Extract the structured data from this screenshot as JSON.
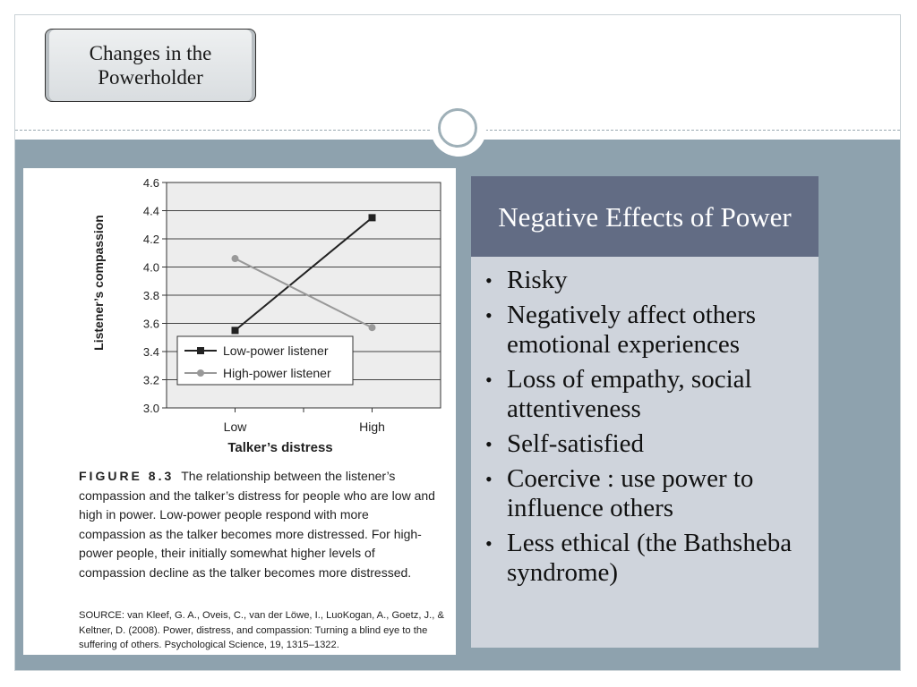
{
  "slide": {
    "section_title": "Changes in the Powerholder",
    "panel_title": "Negative Effects of Power",
    "bullets": [
      "Risky",
      "Negatively affect others emotional experiences",
      "Loss of empathy, social attentiveness",
      "Self-satisfied",
      "Coercive : use power to influence others",
      "Less ethical (the Bathsheba syndrome)"
    ],
    "colors": {
      "band": "#8ea2ae",
      "panel_header": "#626c84",
      "panel_body": "#cfd4dc"
    }
  },
  "figure": {
    "label": "FIGURE 8.3",
    "caption": "The relationship between the listener’s compassion and the talker’s distress for people who are low and high in power. Low-power people respond with more compassion as the talker becomes more distressed. For high-power people, their initially somewhat higher levels of compassion decline as the talker becomes more distressed.",
    "source": "SOURCE: van Kleef, G. A., Oveis, C., van der Löwe, I., LuoKogan, A., Goetz, J., & Keltner, D. (2008). Power, distress, and compassion: Turning a blind eye to the suffering of others. Psychological Science, 19, 1315–1322."
  },
  "chart_data": {
    "type": "line",
    "title": "",
    "xlabel": "Talker’s distress",
    "ylabel": "Listener’s compassion",
    "categories": [
      "Low",
      "High"
    ],
    "ylim": [
      3.0,
      4.6
    ],
    "yticks": [
      "3.0",
      "3.2",
      "3.4",
      "3.6",
      "3.8",
      "4.0",
      "4.2",
      "4.4",
      "4.6"
    ],
    "grid": true,
    "legend_position": "bottom-left",
    "series": [
      {
        "name": "Low-power listener",
        "values": [
          3.55,
          4.35
        ],
        "color": "#222222",
        "marker": "square"
      },
      {
        "name": "High-power listener",
        "values": [
          4.06,
          3.57
        ],
        "color": "#999999",
        "marker": "circle"
      }
    ]
  }
}
